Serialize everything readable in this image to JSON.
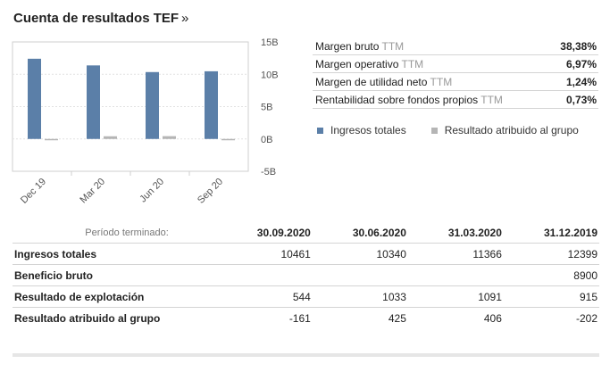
{
  "header": {
    "title": "Cuenta de resultados TEF",
    "chevron": "»"
  },
  "chart_data": {
    "type": "bar",
    "categories": [
      "Dec 19",
      "Mar 20",
      "Jun 20",
      "Sep 20"
    ],
    "series": [
      {
        "name": "Ingresos totales",
        "values": [
          12.4,
          11.37,
          10.34,
          10.46
        ],
        "color": "#5b7fa8"
      },
      {
        "name": "Resultado atribuido al grupo",
        "values": [
          -0.2,
          0.41,
          0.43,
          -0.16
        ],
        "color": "#b5b5b5"
      }
    ],
    "yticks": [
      "15B",
      "10B",
      "5B",
      "0B",
      "-5B"
    ],
    "ylim": [
      -5,
      15
    ],
    "grid": true
  },
  "ratios": [
    {
      "label": "Margen bruto",
      "ttm": "TTM",
      "value": "38,38%"
    },
    {
      "label": "Margen operativo",
      "ttm": "TTM",
      "value": "6,97%"
    },
    {
      "label": "Margen de utilidad neto",
      "ttm": "TTM",
      "value": "1,24%"
    },
    {
      "label": "Rentabilidad sobre fondos propios",
      "ttm": "TTM",
      "value": "0,73%"
    }
  ],
  "legend": [
    {
      "label": "Ingresos totales",
      "color": "#5b7fa8"
    },
    {
      "label": "Resultado atribuido al grupo",
      "color": "#b5b5b5"
    }
  ],
  "table": {
    "period_label": "Período terminado:",
    "columns": [
      "30.09.2020",
      "30.06.2020",
      "31.03.2020",
      "31.12.2019"
    ],
    "rows": [
      {
        "label": "Ingresos totales",
        "values": [
          "10461",
          "10340",
          "11366",
          "12399"
        ]
      },
      {
        "label": "Beneficio bruto",
        "values": [
          "",
          "",
          "",
          "8900"
        ]
      },
      {
        "label": "Resultado de explotación",
        "values": [
          "544",
          "1033",
          "1091",
          "915"
        ]
      },
      {
        "label": "Resultado atribuido al grupo",
        "values": [
          "-161",
          "425",
          "406",
          "-202"
        ]
      }
    ]
  }
}
